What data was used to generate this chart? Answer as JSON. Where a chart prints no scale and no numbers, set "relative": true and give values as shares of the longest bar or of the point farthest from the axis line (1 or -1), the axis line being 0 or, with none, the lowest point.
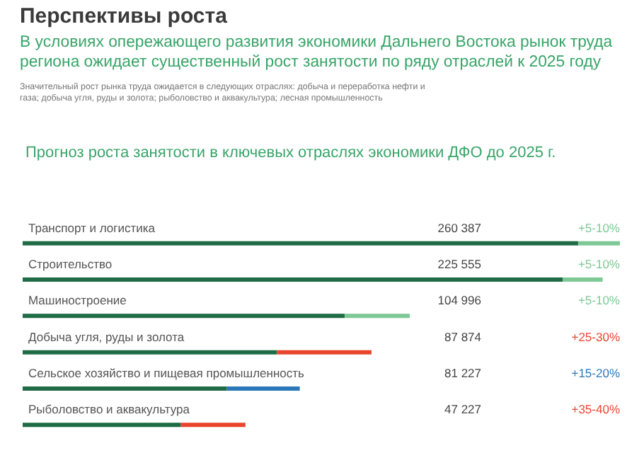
{
  "chart_data": {
    "type": "bar",
    "orientation": "horizontal",
    "stacked": true,
    "relative": true,
    "title": "Перспективы роста",
    "subtitle": "В условиях опережающего развития экономики Дальнего Востока рынок труда\nрегиона ожидает существенный рост занятости по ряду отраслей к 2025 году",
    "annotations": [
      "Значительный рост рынка труда ожидается в следующих отраслях: добыча и переработка нефти и\nгаза; добыча угля, руды и золота; рыболовство и аквакультура; лесная промышленность",
      "Прогноз роста занятости в ключевых отраслях экономики ДФО до 2025 г.",
      "260 387",
      "225 555",
      "104 996",
      "87 874",
      "81 227",
      "47 227",
      "+5-10%",
      "+5-10%",
      "+5-10%",
      "+25-30%",
      "+15-20%",
      "+35-40%"
    ],
    "categories": [
      "Транспорт и логистика",
      "Строительство",
      "Машиностроение",
      "Добыча угля, руды и золота",
      "Сельское хозяйство и пищевая промышленность",
      "Рыболовство и аквакультура"
    ],
    "series": [
      {
        "color": "#1e6b45",
        "values": [
          0.93,
          0.904,
          0.539,
          0.426,
          0.342,
          0.265
        ]
      },
      {
        "colors": [
          "#7dc895",
          "#7dc895",
          "#7dc895",
          "#e8452c",
          "#2b78b8",
          "#e8452c"
        ],
        "values": [
          0.07,
          0.067,
          0.109,
          0.158,
          0.122,
          0.108
        ]
      }
    ]
  }
}
